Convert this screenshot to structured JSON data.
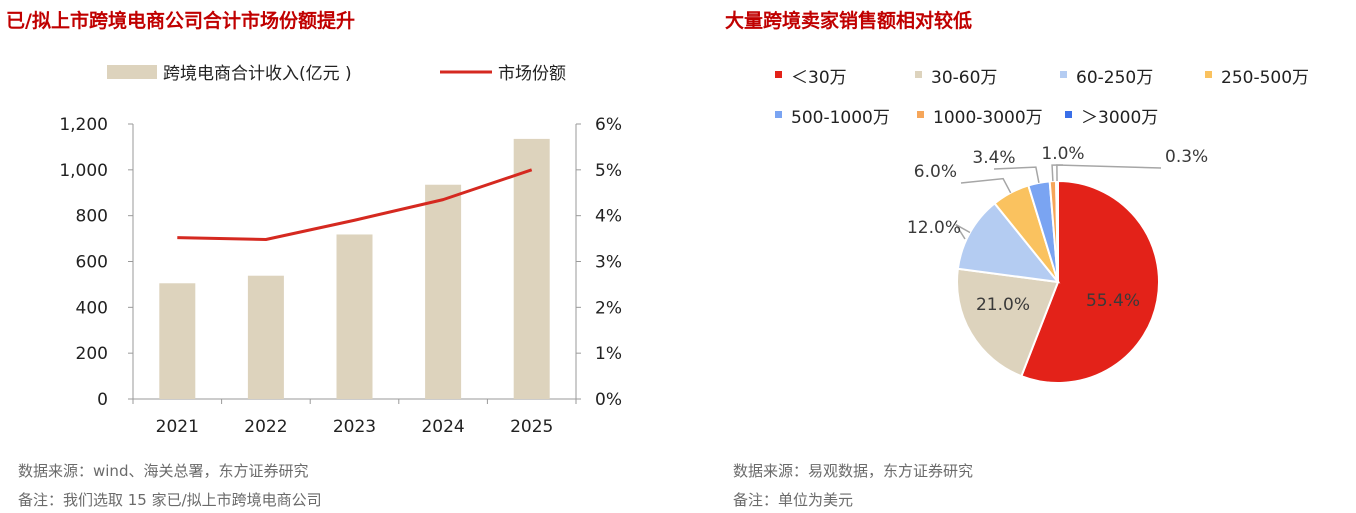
{
  "left": {
    "title": "已/拟上市跨境电商公司合计市场份额提升",
    "source": "数据来源：wind、海关总署，东方证券研究",
    "note": "备注：我们选取 15 家已/拟上市跨境电商公司"
  },
  "right": {
    "title": "大量跨境卖家销售额相对较低",
    "source": "数据来源：易观数据，东方证券研究",
    "note": "备注：单位为美元"
  },
  "chart_data": [
    {
      "type": "bar",
      "categories": [
        "2021",
        "2022",
        "2023",
        "2024",
        "2025"
      ],
      "series": [
        {
          "name": "跨境电商合计收入(亿元 )",
          "type": "bar",
          "axis": "left",
          "values": [
            505,
            538,
            718,
            935,
            1135
          ],
          "color": "#ddd3bd"
        },
        {
          "name": "市场份额",
          "type": "line",
          "axis": "right",
          "values": [
            3.52,
            3.48,
            3.9,
            4.35,
            5.0
          ],
          "color": "#d52920"
        }
      ],
      "y_left": {
        "min": 0,
        "max": 1200,
        "ticks": [
          "0",
          "200",
          "400",
          "600",
          "800",
          "1,000",
          "1,200"
        ]
      },
      "y_right": {
        "min": 0,
        "max": 6,
        "ticks": [
          "0%",
          "1%",
          "2%",
          "3%",
          "4%",
          "5%",
          "6%"
        ]
      },
      "legend": "top"
    },
    {
      "type": "pie",
      "slices": [
        {
          "label": "＜30万",
          "value": 55.4,
          "display": "55.4%",
          "color": "#e32219"
        },
        {
          "label": "30-60万",
          "value": 21.0,
          "display": "21.0%",
          "color": "#ddd3bd"
        },
        {
          "label": "60-250万",
          "value": 12.0,
          "display": "12.0%",
          "color": "#b4ccf2"
        },
        {
          "label": "250-500万",
          "value": 6.0,
          "display": "6.0%",
          "color": "#fac25f"
        },
        {
          "label": "500-1000万",
          "value": 3.4,
          "display": "3.4%",
          "color": "#7aa4f2"
        },
        {
          "label": "1000-3000万",
          "value": 1.0,
          "display": "1.0%",
          "color": "#f6a65a"
        },
        {
          "label": "＞3000万",
          "value": 0.3,
          "display": "0.3%",
          "color": "#3a6fe8"
        }
      ],
      "legend": "top"
    }
  ]
}
